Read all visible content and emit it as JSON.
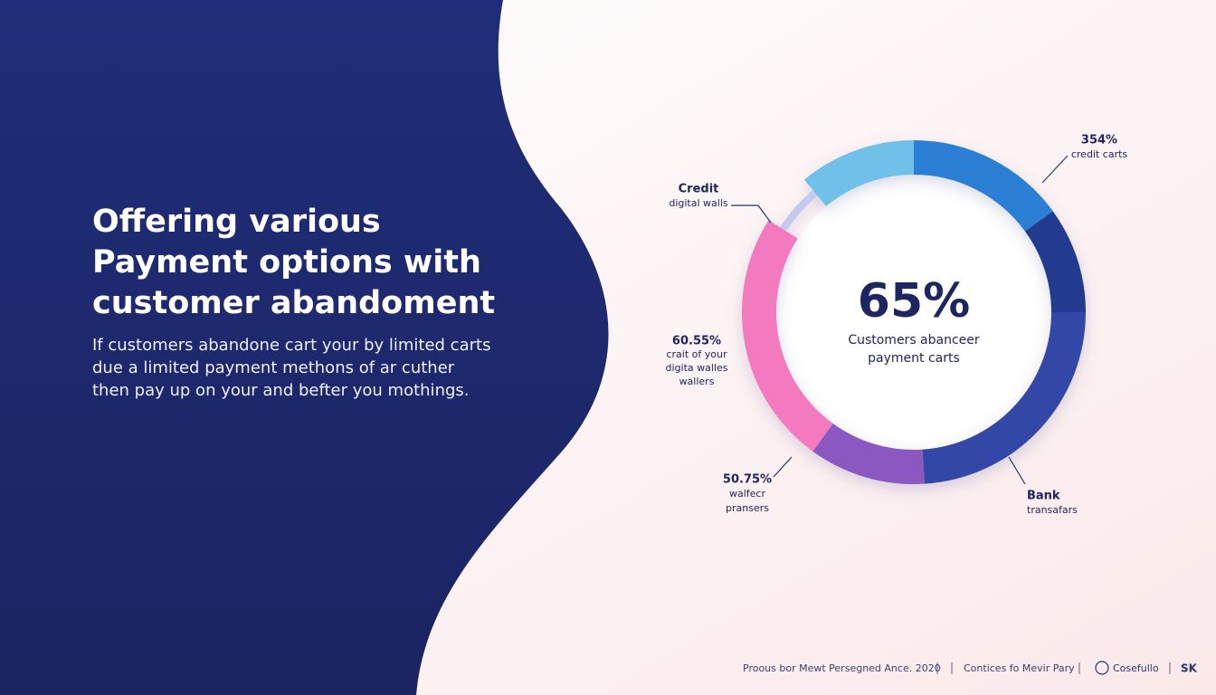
{
  "slide": {
    "title_lines": [
      "Offering various",
      "Payment options with",
      "customer abandoment"
    ],
    "body_lines": [
      "If customers abandone cart your by limited carts",
      "due a limited payment methons of ar cuther",
      "then pay up on your and befter you mothings."
    ],
    "footer": {
      "left": "Proous bor Mewt Persegned Ance. 2020",
      "middle": "Contices fo Mevir Pary",
      "brand": "Cosefullo",
      "mark": "SK"
    }
  },
  "chart_data": {
    "type": "donut",
    "center_value": "65%",
    "center_lines": [
      "Customers abanceer",
      "payment carts"
    ],
    "values": [
      15,
      10,
      24,
      11,
      24,
      5,
      11
    ],
    "colors": [
      "#2a7fd4",
      "#243b8f",
      "#3146a6",
      "#8a58c0",
      "#f47ac0",
      "#c5c9f0",
      "#6fc0ea"
    ],
    "annotations": [
      {
        "lines": [
          "354%",
          "credit carts"
        ]
      },
      {
        "lines": [
          "Credit",
          "digital walls"
        ]
      },
      {
        "lines": [
          "60.55%",
          "crait of your",
          "digita walles",
          "wallers"
        ]
      },
      {
        "lines": [
          "50.75%",
          "walfecr",
          "pransers"
        ]
      },
      {
        "lines": [
          "Bank",
          "transafars"
        ]
      }
    ]
  }
}
